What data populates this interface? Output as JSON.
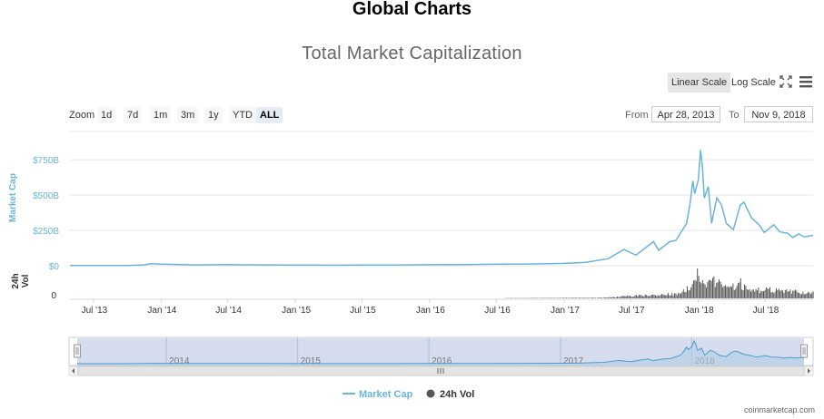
{
  "header": {
    "title": "Global Charts"
  },
  "chart": {
    "title": "Total Market Capitalization",
    "scale_buttons": {
      "linear": "Linear Scale",
      "log": "Log Scale"
    },
    "zoom": {
      "label": "Zoom",
      "buttons": [
        "1d",
        "7d",
        "1m",
        "3m",
        "1y",
        "YTD",
        "ALL"
      ],
      "active": "ALL"
    },
    "range": {
      "from_label": "From",
      "from_value": "Apr 28, 2013",
      "to_label": "To",
      "to_value": "Nov 9, 2018"
    },
    "credit": "coinmarketcap.com"
  },
  "colors": {
    "market_cap": "#6ab4dc",
    "volume": "#555555",
    "navigator_fill": "#ccd6eb",
    "grid": "#e6e6e6"
  },
  "icons": [
    "fullscreen-icon",
    "menu-icon"
  ],
  "chart_data": {
    "type": "line",
    "title": "Total Market Capitalization",
    "x_ticks": [
      "Jul '13",
      "Jan '14",
      "Jul '14",
      "Jan '15",
      "Jul '15",
      "Jan '16",
      "Jul '16",
      "Jan '17",
      "Jul '17",
      "Jan '18",
      "Jul '18"
    ],
    "x_range": [
      "2013-04-28",
      "2018-11-09"
    ],
    "y_axis": {
      "label": "Market Cap",
      "ticks": [
        "$0",
        "$250B",
        "$500B",
        "$750B"
      ],
      "ylim": [
        0,
        950
      ]
    },
    "volume_axis": {
      "label": "24h Vol",
      "ticks": [
        "0"
      ]
    },
    "navigator_ticks": [
      "2014",
      "2015",
      "2016",
      "2017",
      "2018"
    ],
    "legend": {
      "placement": "bottom-center",
      "items": [
        "Market Cap",
        "24h Vol"
      ]
    },
    "series": [
      {
        "name": "Market Cap",
        "unit": "billion USD",
        "points": [
          [
            "2013-04-28",
            1.6
          ],
          [
            "2013-07-01",
            1.0
          ],
          [
            "2013-10-01",
            2.0
          ],
          [
            "2013-11-15",
            6
          ],
          [
            "2013-12-04",
            14
          ],
          [
            "2014-01-01",
            11
          ],
          [
            "2014-02-15",
            9
          ],
          [
            "2014-04-01",
            6
          ],
          [
            "2014-07-01",
            8
          ],
          [
            "2014-10-01",
            5.5
          ],
          [
            "2015-01-01",
            4.5
          ],
          [
            "2015-04-01",
            3.8
          ],
          [
            "2015-07-01",
            4.5
          ],
          [
            "2015-10-01",
            4.5
          ],
          [
            "2016-01-01",
            7
          ],
          [
            "2016-04-01",
            8
          ],
          [
            "2016-07-01",
            11
          ],
          [
            "2016-10-01",
            12
          ],
          [
            "2017-01-01",
            17
          ],
          [
            "2017-03-01",
            24
          ],
          [
            "2017-05-01",
            50
          ],
          [
            "2017-06-12",
            115
          ],
          [
            "2017-07-15",
            75
          ],
          [
            "2017-09-01",
            170
          ],
          [
            "2017-09-15",
            110
          ],
          [
            "2017-10-15",
            170
          ],
          [
            "2017-11-01",
            180
          ],
          [
            "2017-11-30",
            300
          ],
          [
            "2017-12-10",
            450
          ],
          [
            "2017-12-17",
            600
          ],
          [
            "2017-12-22",
            510
          ],
          [
            "2018-01-01",
            610
          ],
          [
            "2018-01-07",
            820
          ],
          [
            "2018-01-12",
            700
          ],
          [
            "2018-01-17",
            480
          ],
          [
            "2018-01-28",
            560
          ],
          [
            "2018-02-06",
            300
          ],
          [
            "2018-02-20",
            480
          ],
          [
            "2018-03-05",
            430
          ],
          [
            "2018-03-18",
            300
          ],
          [
            "2018-04-06",
            255
          ],
          [
            "2018-04-25",
            430
          ],
          [
            "2018-05-05",
            450
          ],
          [
            "2018-05-25",
            340
          ],
          [
            "2018-06-15",
            290
          ],
          [
            "2018-06-29",
            235
          ],
          [
            "2018-07-25",
            290
          ],
          [
            "2018-08-10",
            240
          ],
          [
            "2018-09-01",
            230
          ],
          [
            "2018-09-15",
            200
          ],
          [
            "2018-10-01",
            225
          ],
          [
            "2018-10-15",
            205
          ],
          [
            "2018-11-09",
            215
          ]
        ]
      },
      {
        "name": "24h Vol",
        "unit": "billion USD",
        "points": [
          [
            "2013-04-28",
            0.1
          ],
          [
            "2014-01-01",
            0.1
          ],
          [
            "2016-01-01",
            0.1
          ],
          [
            "2017-04-01",
            1
          ],
          [
            "2017-06-15",
            4
          ],
          [
            "2017-09-15",
            6
          ],
          [
            "2017-11-15",
            9
          ],
          [
            "2017-12-15",
            25
          ],
          [
            "2017-12-22",
            48
          ],
          [
            "2018-01-05",
            40
          ],
          [
            "2018-01-20",
            28
          ],
          [
            "2018-02-06",
            35
          ],
          [
            "2018-03-10",
            18
          ],
          [
            "2018-04-25",
            26
          ],
          [
            "2018-06-01",
            14
          ],
          [
            "2018-07-20",
            15
          ],
          [
            "2018-08-15",
            13
          ],
          [
            "2018-09-20",
            12
          ],
          [
            "2018-11-09",
            10
          ]
        ]
      }
    ]
  }
}
